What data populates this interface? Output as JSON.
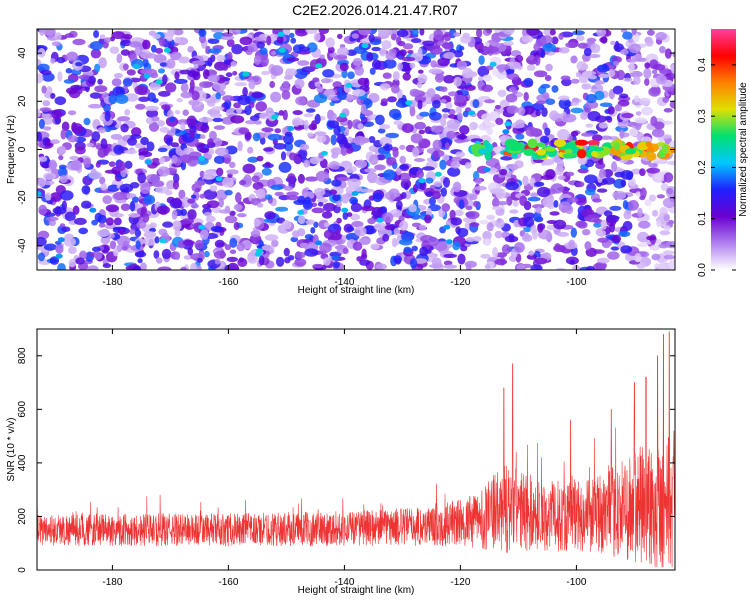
{
  "title": "C2E2.2026.014.21.47.R07",
  "colors": {
    "line": "#ee3333",
    "axis": "#000000",
    "colormap": [
      "#ffffff",
      "#b080f0",
      "#6a00d0",
      "#2020ff",
      "#00c8ff",
      "#00e070",
      "#e0e000",
      "#ff8000",
      "#ff0000",
      "#ff40a0"
    ]
  },
  "chart_data": [
    {
      "type": "heatmap",
      "name": "spectrogram",
      "xlabel": "Height of straight line (km)",
      "ylabel": "Frequency (Hz)",
      "xlim": [
        -193,
        -83
      ],
      "ylim": [
        -50,
        50
      ],
      "xticks": [
        -180,
        -160,
        -140,
        -120,
        -100
      ],
      "xtick_labels": [
        "-180",
        "-160",
        "-140",
        "-120",
        "-100"
      ],
      "yticks": [
        -40,
        -20,
        0,
        20,
        40
      ],
      "ytick_labels": [
        "-40",
        "-20",
        "0",
        "20",
        "40"
      ],
      "feature": {
        "description_band_frequency": 0,
        "band_start": -118,
        "band_end": -83
      },
      "colorbar": {
        "label": "Normalized spectral amplitude",
        "range": [
          0,
          0.47
        ],
        "ticks": [
          0.0,
          0.1,
          0.2,
          0.3,
          0.4
        ],
        "tick_labels": [
          "0.0",
          "0.1",
          "0.2",
          "0.3",
          "0.4"
        ]
      }
    },
    {
      "type": "line",
      "name": "snr",
      "xlabel": "Height of straight line (km)",
      "ylabel": "SNR (10 * v/v)",
      "xlim": [
        -193,
        -83
      ],
      "ylim": [
        0,
        900
      ],
      "xticks": [
        -180,
        -160,
        -140,
        -120,
        -100
      ],
      "xtick_labels": [
        "-180",
        "-160",
        "-140",
        "-120",
        "-100"
      ],
      "yticks": [
        0,
        200,
        400,
        600,
        800
      ],
      "ytick_labels": [
        "0",
        "200",
        "400",
        "600",
        "800"
      ],
      "baseline_profile": {
        "x": [
          -193,
          -180,
          -160,
          -140,
          -125,
          -118,
          -112,
          -105,
          -95,
          -88,
          -84
        ],
        "mean": [
          150,
          150,
          150,
          155,
          165,
          180,
          230,
          200,
          210,
          240,
          250
        ],
        "spread": [
          90,
          95,
          95,
          100,
          115,
          150,
          260,
          200,
          230,
          380,
          420
        ]
      },
      "peaks": [
        {
          "x": -111,
          "y": 770
        },
        {
          "x": -112.5,
          "y": 680
        },
        {
          "x": -101,
          "y": 560
        },
        {
          "x": -94,
          "y": 600
        },
        {
          "x": -90,
          "y": 700
        },
        {
          "x": -88,
          "y": 720
        },
        {
          "x": -86,
          "y": 800
        },
        {
          "x": -85,
          "y": 880
        },
        {
          "x": -84,
          "y": 890
        }
      ]
    }
  ]
}
